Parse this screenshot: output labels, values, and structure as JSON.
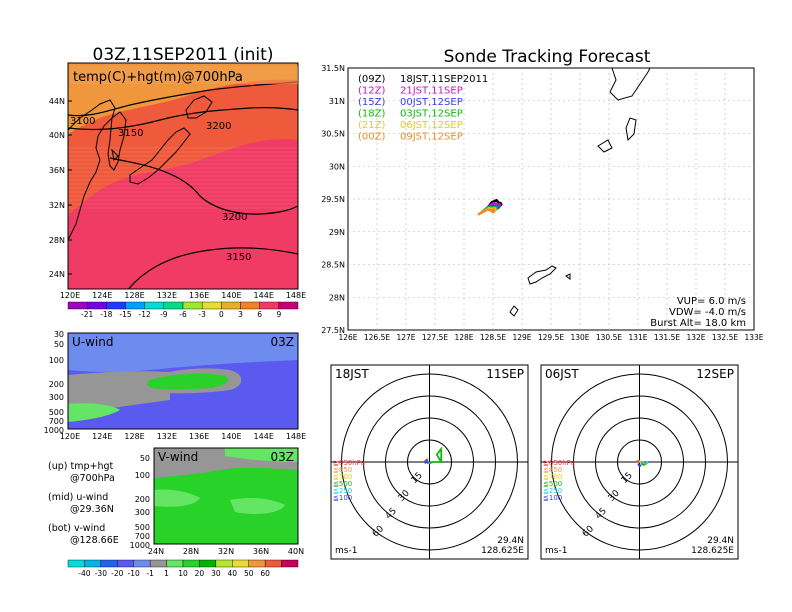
{
  "titles": {
    "left": "03Z,11SEP2011 (init)",
    "right": "Sonde Tracking Forecast"
  },
  "colors": {
    "band_low": "#f03c64",
    "band_mid": "#f05a3c",
    "band_high": "#f0963c",
    "wind_blue": "#5a5af0",
    "wind_light": "#6e8cf0",
    "wind_green": "#28d228",
    "wind_gray": "#969696",
    "wind_lgreen": "#64e664"
  },
  "top_map": {
    "label": "temp(C)+hgt(m)@700hPa",
    "lat_labels": [
      "44N",
      "40N",
      "36N",
      "32N",
      "28N",
      "24N"
    ],
    "lon_labels": [
      "120E",
      "124E",
      "128E",
      "132E",
      "136E",
      "140E",
      "144E",
      "148E"
    ],
    "contour_labels": [
      "3100",
      "3150",
      "3200",
      "3200",
      "3150"
    ],
    "colorbar_colors": [
      "#a000c8",
      "#7800dc",
      "#1e3cff",
      "#00a0ff",
      "#00dcdc",
      "#00dc8c",
      "#a0e632",
      "#e6dc32",
      "#e6af2d",
      "#f08228",
      "#f03c64",
      "#c80078"
    ],
    "colorbar_labels": [
      "-21",
      "-18",
      "-15",
      "-12",
      "-9",
      "-6",
      "-3",
      "0",
      "3",
      "6",
      "9"
    ]
  },
  "u_panel": {
    "label": "U-wind",
    "time": "03Z",
    "y_labels": [
      "30",
      "50",
      "100",
      "200",
      "300",
      "500",
      "700",
      "1000"
    ],
    "x_labels": [
      "120E",
      "124E",
      "128E",
      "132E",
      "136E",
      "140E",
      "144E",
      "148E"
    ]
  },
  "v_panel": {
    "label": "V-wind",
    "time": "03Z",
    "y_labels": [
      "50",
      "100",
      "200",
      "300",
      "500",
      "700",
      "1000"
    ],
    "x_labels": [
      "24N",
      "28N",
      "32N",
      "36N",
      "40N"
    ]
  },
  "notes": [
    {
      "a": "(up) tmp+hgt",
      "b": "@700hPa"
    },
    {
      "a": "(mid) u-wind",
      "b": "@29.36N"
    },
    {
      "a": "(bot) v-wind",
      "b": "@128.66E"
    }
  ],
  "bottom_colorbar": {
    "colors": [
      "#00dcdc",
      "#00b4e6",
      "#1e64f0",
      "#5a5af0",
      "#6e8cf0",
      "#969696",
      "#64e664",
      "#28d228",
      "#00b400",
      "#b4e632",
      "#e6dc32",
      "#f0963c",
      "#f05a3c",
      "#c8005a"
    ],
    "labels": [
      "-40",
      "-30",
      "-20",
      "-10",
      "-1",
      "1",
      "10",
      "20",
      "30",
      "40",
      "50",
      "60"
    ]
  },
  "chart_data": [
    {
      "type": "line",
      "title": "Sonde Tracking Forecast",
      "xlim": [
        126,
        133
      ],
      "ylim": [
        27.5,
        31.5
      ],
      "x_ticks": [
        "126E",
        "126.5E",
        "127E",
        "127.5E",
        "128E",
        "128.5E",
        "129E",
        "129.5E",
        "130E",
        "130.5E",
        "131E",
        "131.5E",
        "132E",
        "132.5E",
        "133E"
      ],
      "y_ticks": [
        "27.5N",
        "28N",
        "28.5N",
        "29N",
        "29.5N",
        "30N",
        "30.5N",
        "31N",
        "31.5N"
      ],
      "legend": [
        {
          "code": "(09Z)",
          "time": "18JST,11SEP2011",
          "color": "#000000"
        },
        {
          "code": "(12Z)",
          "time": "21JST,11SEP",
          "color": "#c814c8"
        },
        {
          "code": "(15Z)",
          "time": "00JST,12SEP",
          "color": "#3c3cf0"
        },
        {
          "code": "(18Z)",
          "time": "03JST,12SEP",
          "color": "#14b414"
        },
        {
          "code": "(21Z)",
          "time": "06JST,12SEP",
          "color": "#e6c828"
        },
        {
          "code": "(00Z)",
          "time": "09JST,12SEP",
          "color": "#f08c28"
        }
      ],
      "series": [
        {
          "name": "(09Z)",
          "x": [
            128.42,
            128.48,
            128.56,
            128.62
          ],
          "y": [
            29.38,
            29.45,
            29.48,
            29.42
          ]
        },
        {
          "name": "(12Z)",
          "x": [
            128.4,
            128.45,
            128.52,
            128.6
          ],
          "y": [
            29.36,
            29.4,
            29.44,
            29.4
          ]
        },
        {
          "name": "(15Z)",
          "x": [
            128.35,
            128.42,
            128.5,
            128.58
          ],
          "y": [
            29.33,
            29.38,
            29.4,
            29.38
          ]
        },
        {
          "name": "(18Z)",
          "x": [
            128.3,
            128.38,
            128.46,
            128.55
          ],
          "y": [
            29.3,
            29.35,
            29.38,
            29.36
          ]
        },
        {
          "name": "(21Z)",
          "x": [
            128.27,
            128.35,
            128.43,
            128.52
          ],
          "y": [
            29.28,
            29.32,
            29.36,
            29.34
          ]
        },
        {
          "name": "(00Z)",
          "x": [
            128.24,
            128.32,
            128.4,
            128.5
          ],
          "y": [
            29.26,
            29.3,
            29.34,
            29.32
          ]
        }
      ],
      "info": [
        "VUP= 6.0 m/s",
        "VDW= -4.0 m/s",
        "Burst Alt= 18.0 km"
      ]
    },
    {
      "type": "line",
      "panel": "hodograph",
      "time": "18JST",
      "date": "11SEP",
      "ring_labels": [
        "15",
        "30",
        "45",
        "60"
      ],
      "level_labels": [
        "≧850hPa",
        "≦850",
        "≦700",
        "≦500",
        "≦250",
        "≦100"
      ],
      "level_colors": [
        "#f03c3c",
        "#f0963c",
        "#e6c828",
        "#14b414",
        "#28c8e6",
        "#3c3cf0"
      ],
      "unit": "ms-1",
      "lat": "29.4N",
      "lon": "128.625E",
      "series": [
        {
          "name": "≧850hPa",
          "u": [
            -1,
            -2,
            -1
          ],
          "v": [
            0,
            1,
            2
          ]
        },
        {
          "name": "≦850",
          "u": [
            -1,
            -3,
            -2
          ],
          "v": [
            2,
            1,
            0
          ]
        },
        {
          "name": "≦700",
          "u": [
            -2,
            -1,
            0
          ],
          "v": [
            0,
            -1,
            -1
          ]
        },
        {
          "name": "≦500",
          "u": [
            0,
            2,
            8,
            5,
            8,
            8
          ],
          "v": [
            -1,
            0,
            0,
            5,
            9,
            0
          ]
        },
        {
          "name": "≦250",
          "u": [
            -1,
            0
          ],
          "v": [
            -1,
            0
          ]
        },
        {
          "name": "≦100",
          "u": [
            -3,
            -2,
            -1
          ],
          "v": [
            -1,
            1,
            -1
          ]
        }
      ]
    },
    {
      "type": "line",
      "panel": "hodograph",
      "time": "06JST",
      "date": "12SEP",
      "ring_labels": [
        "15",
        "30",
        "45",
        "60"
      ],
      "level_labels": [
        "≧850hPa",
        "≦850",
        "≦700",
        "≦500",
        "≦250",
        "≦100"
      ],
      "level_colors": [
        "#f03c3c",
        "#f0963c",
        "#e6c828",
        "#14b414",
        "#28c8e6",
        "#3c3cf0"
      ],
      "unit": "ms-1",
      "lat": "29.4N",
      "lon": "128.625E",
      "series": [
        {
          "name": "≧850hPa",
          "u": [
            -2,
            -1
          ],
          "v": [
            0,
            1
          ]
        },
        {
          "name": "≦850",
          "u": [
            -1,
            1
          ],
          "v": [
            1,
            0
          ]
        },
        {
          "name": "≦700",
          "u": [
            0,
            2
          ],
          "v": [
            0,
            -1
          ]
        },
        {
          "name": "≦500",
          "u": [
            1,
            3,
            6
          ],
          "v": [
            -1,
            -2,
            0
          ]
        },
        {
          "name": "≦250",
          "u": [
            2,
            4,
            6
          ],
          "v": [
            0,
            -1,
            0
          ]
        },
        {
          "name": "≦100",
          "u": [
            -1,
            0,
            1
          ],
          "v": [
            -1,
            -3,
            -2
          ]
        }
      ]
    }
  ]
}
